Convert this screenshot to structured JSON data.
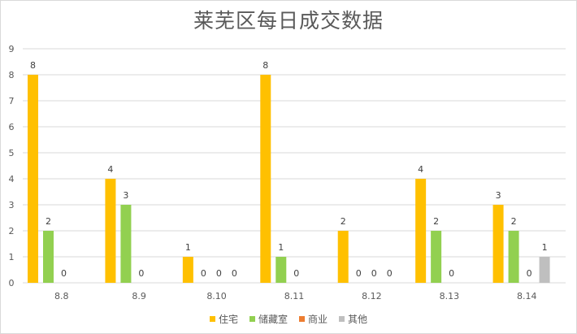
{
  "colors": {
    "series": [
      "#ffc000",
      "#92d050",
      "#ed7d31",
      "#bfbfbf"
    ],
    "grid": "#d9d9d9",
    "text": "#595959"
  },
  "chart_data": {
    "type": "bar",
    "title": "莱芜区每日成交数据",
    "xlabel": "",
    "ylabel": "",
    "ylim": [
      0,
      9
    ],
    "yticks": [
      0,
      1,
      2,
      3,
      4,
      5,
      6,
      7,
      8,
      9
    ],
    "grid": true,
    "legend": "bottom",
    "categories": [
      "8.8",
      "8.9",
      "8.10",
      "8.11",
      "8.12",
      "8.13",
      "8.14"
    ],
    "series": [
      {
        "name": "住宅",
        "values": [
          8,
          4,
          1,
          8,
          2,
          4,
          3
        ],
        "labels": [
          "8",
          "4",
          "1",
          "8",
          "2",
          "4",
          "3"
        ]
      },
      {
        "name": "储藏室",
        "values": [
          2,
          3,
          0,
          1,
          0,
          2,
          2
        ],
        "labels": [
          "2",
          "3",
          "0",
          "1",
          "0",
          "2",
          "2"
        ]
      },
      {
        "name": "商业",
        "values": [
          0,
          0,
          0,
          0,
          0,
          0,
          0
        ],
        "labels": [
          "0",
          "0",
          "0",
          "0",
          "0",
          "0",
          "0"
        ]
      },
      {
        "name": "其他",
        "values": [
          0,
          0,
          0,
          0,
          0,
          0,
          1
        ],
        "labels": [
          "",
          "",
          "0",
          "",
          "0",
          "",
          "1"
        ]
      }
    ]
  }
}
